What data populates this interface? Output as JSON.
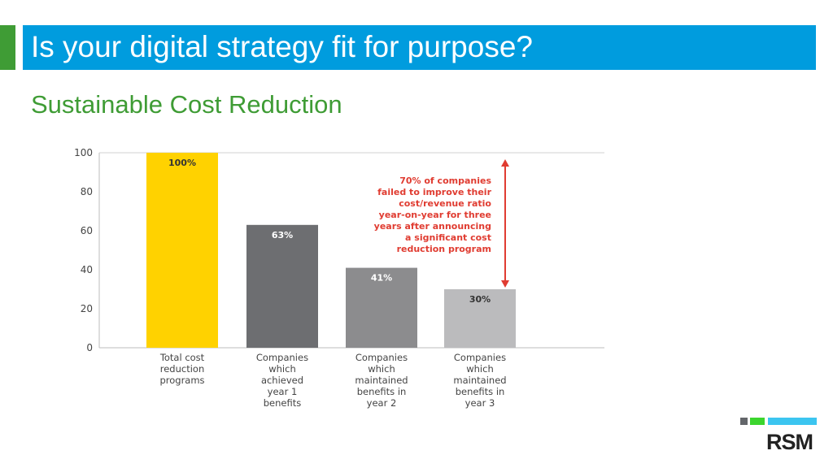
{
  "header": {
    "title": "Is your digital strategy fit for purpose?",
    "title_bg": "#009cde",
    "accent_color": "#3f9c35"
  },
  "subtitle": "Sustainable Cost Reduction",
  "chart_data": {
    "type": "bar",
    "categories": [
      [
        "Total cost",
        "reduction",
        "programs"
      ],
      [
        "Companies",
        "which",
        "achieved",
        "year 1",
        "benefits"
      ],
      [
        "Companies",
        "which",
        "maintained",
        "benefits in",
        "year 2"
      ],
      [
        "Companies",
        "which",
        "maintained",
        "benefits in",
        "year 3"
      ]
    ],
    "values": [
      100,
      63,
      41,
      30
    ],
    "data_labels": [
      "100%",
      "63%",
      "41%",
      "30%"
    ],
    "bar_colors": [
      "#ffd200",
      "#6d6e71",
      "#8c8c8e",
      "#bbbbbd"
    ],
    "label_colors": [
      "#333333",
      "#ffffff",
      "#ffffff",
      "#333333"
    ],
    "ylim": [
      0,
      100
    ],
    "yticks": [
      0,
      20,
      40,
      60,
      80,
      100
    ],
    "grid": false,
    "annotation": {
      "lines": [
        "70% of companies",
        "failed to improve their",
        "cost/revenue ratio",
        "year-on-year for three",
        "years after announcing",
        "a significant cost",
        "reduction program"
      ],
      "color": "#e03c31",
      "from_value": 100,
      "to_value": 30
    }
  },
  "logo": {
    "text": "RSM",
    "colors": [
      "#63666a",
      "#3cd52e",
      "#3cc5f0"
    ]
  }
}
